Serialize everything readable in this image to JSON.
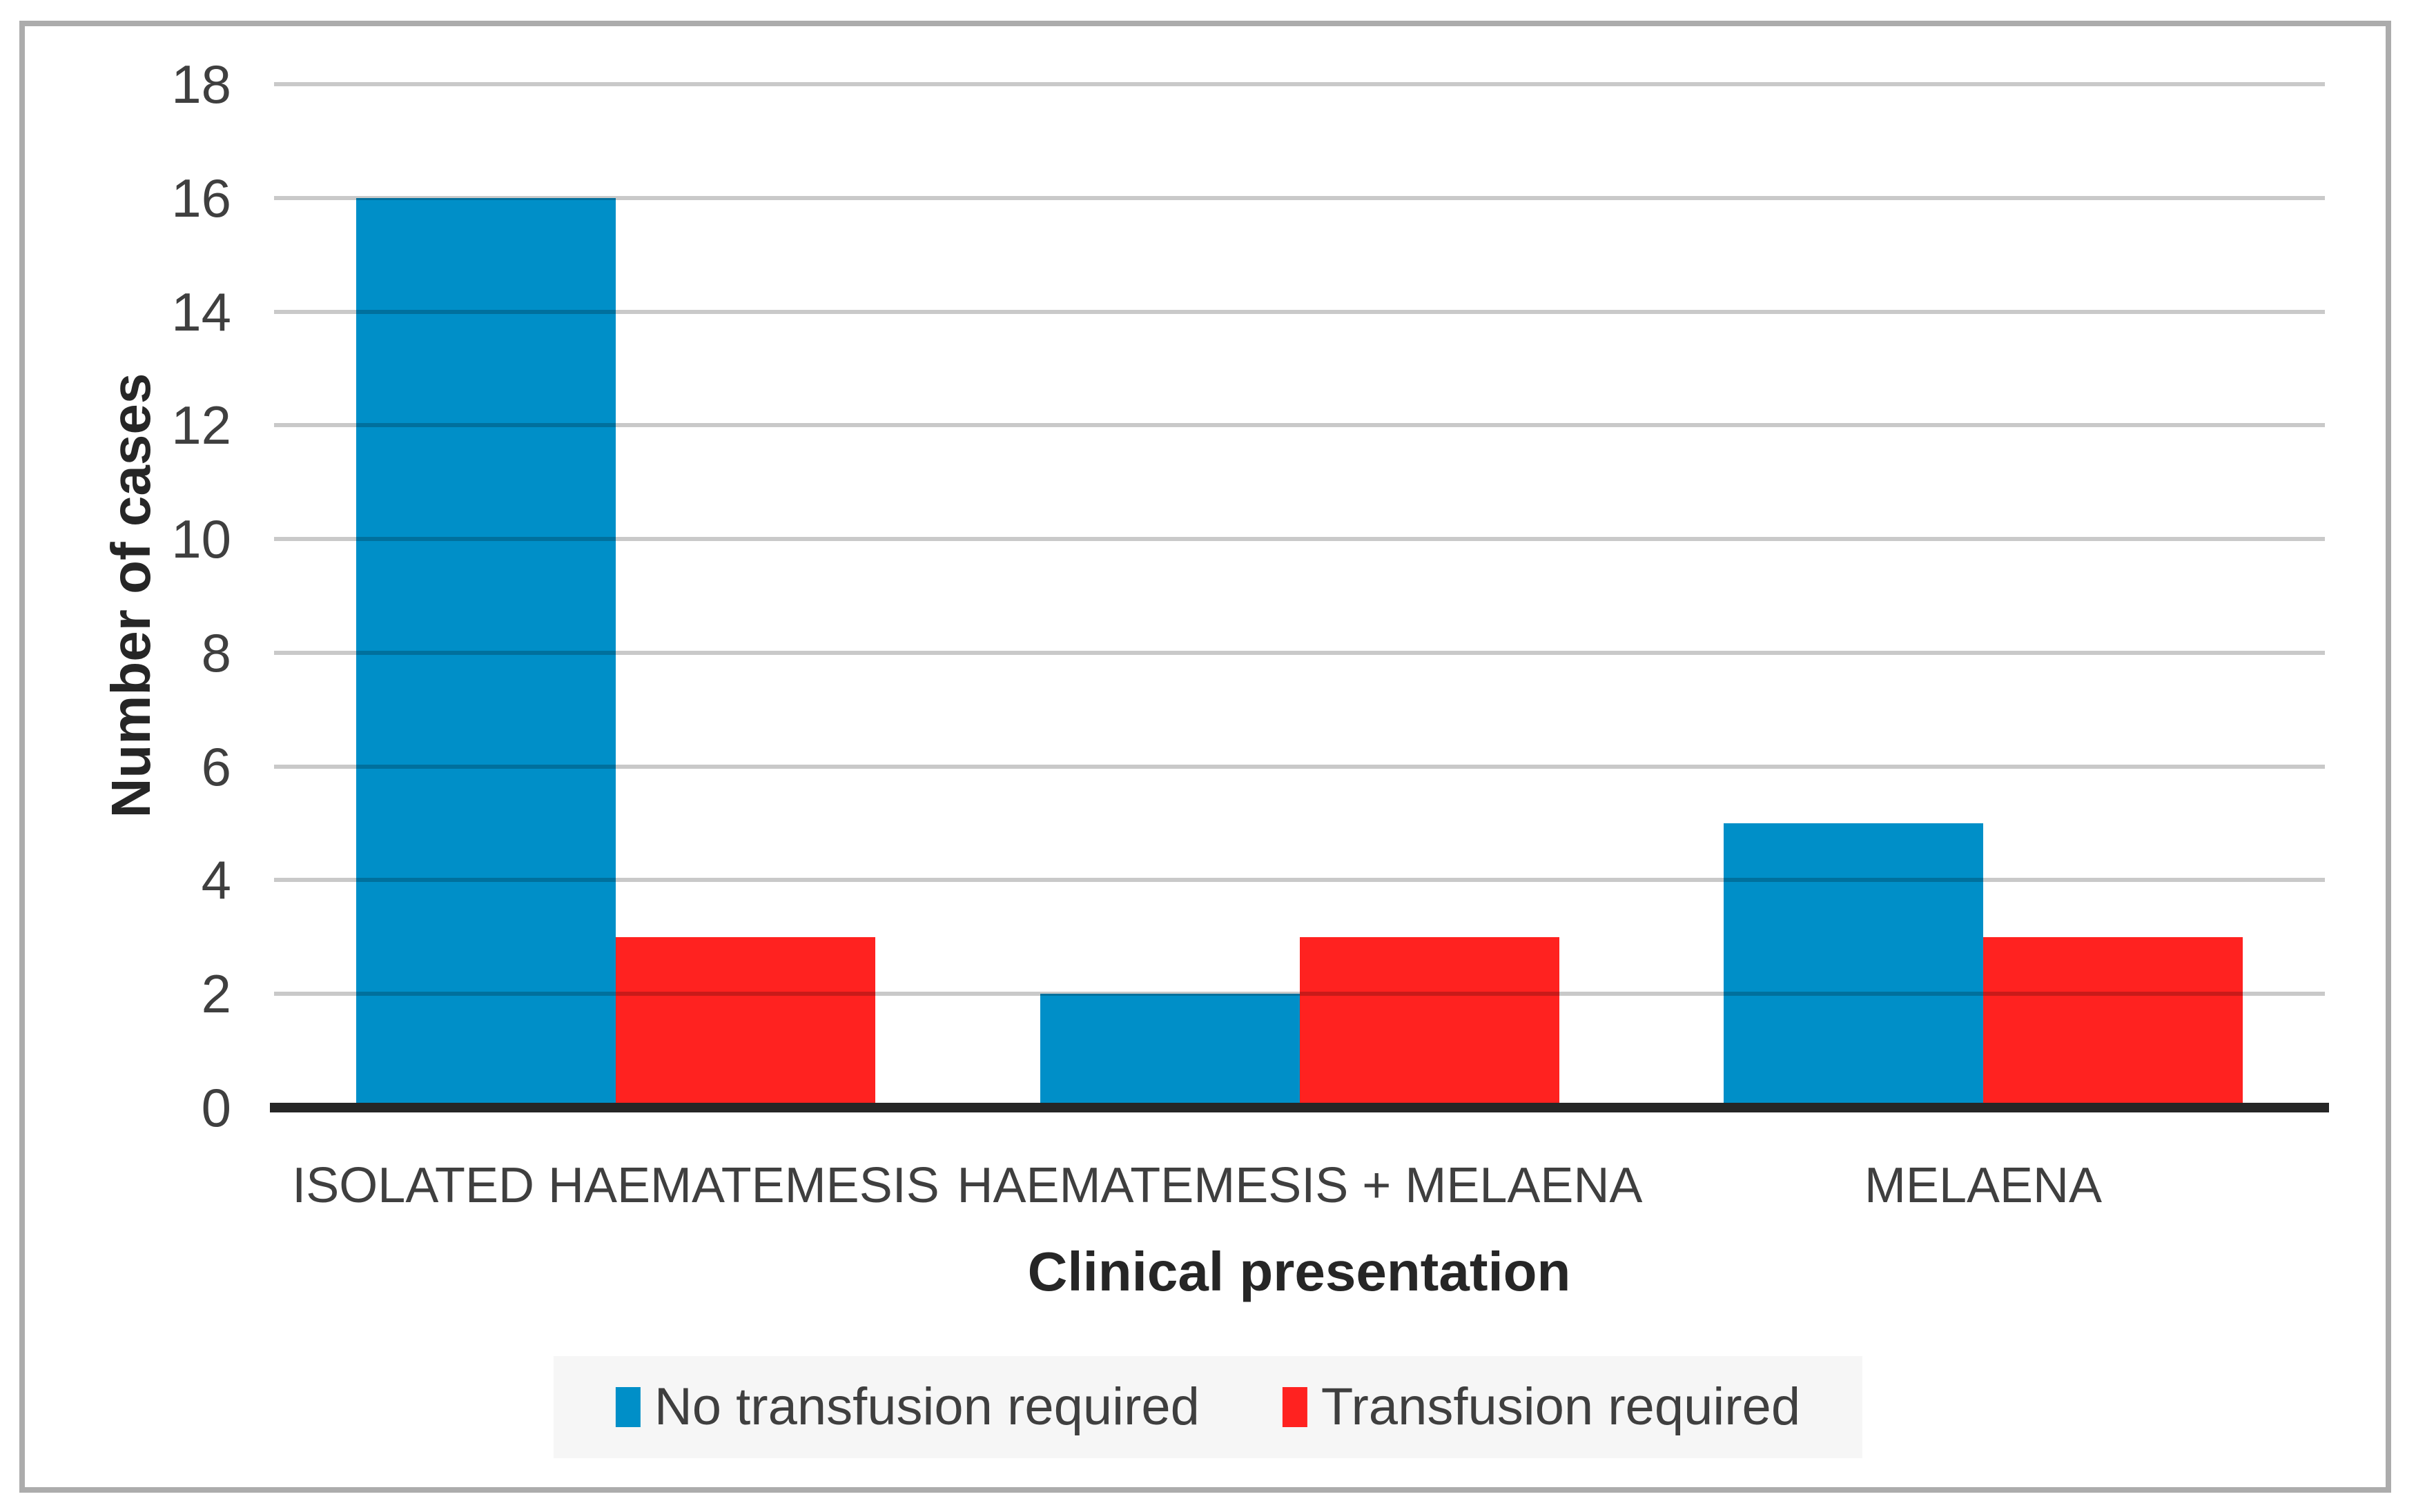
{
  "chart_data": {
    "type": "bar",
    "title": "",
    "categories": [
      "ISOLATED HAEMATEMESIS",
      "HAEMATEMESIS + MELAENA",
      "MELAENA"
    ],
    "series": [
      {
        "name": "No transfusion required",
        "color": "#008FC8",
        "values": [
          16,
          2,
          5
        ]
      },
      {
        "name": "Transfusion required",
        "color": "#FF2220",
        "values": [
          3,
          3,
          3
        ]
      }
    ],
    "xlabel": "Clinical presentation",
    "ylabel": "Number of cases",
    "ylim": [
      0,
      18
    ],
    "yticks": [
      0,
      2,
      4,
      6,
      8,
      10,
      12,
      14,
      16,
      18
    ],
    "grid": "horizontal",
    "legend_position": "bottom-center",
    "colors": {
      "axis_line": "#262626",
      "gridline": "#C7C7C7",
      "text": "#3F3F3F",
      "legend_background": "#F6F6F6",
      "frame_border": "#ACACAC",
      "background": "#FFFFFF"
    }
  }
}
